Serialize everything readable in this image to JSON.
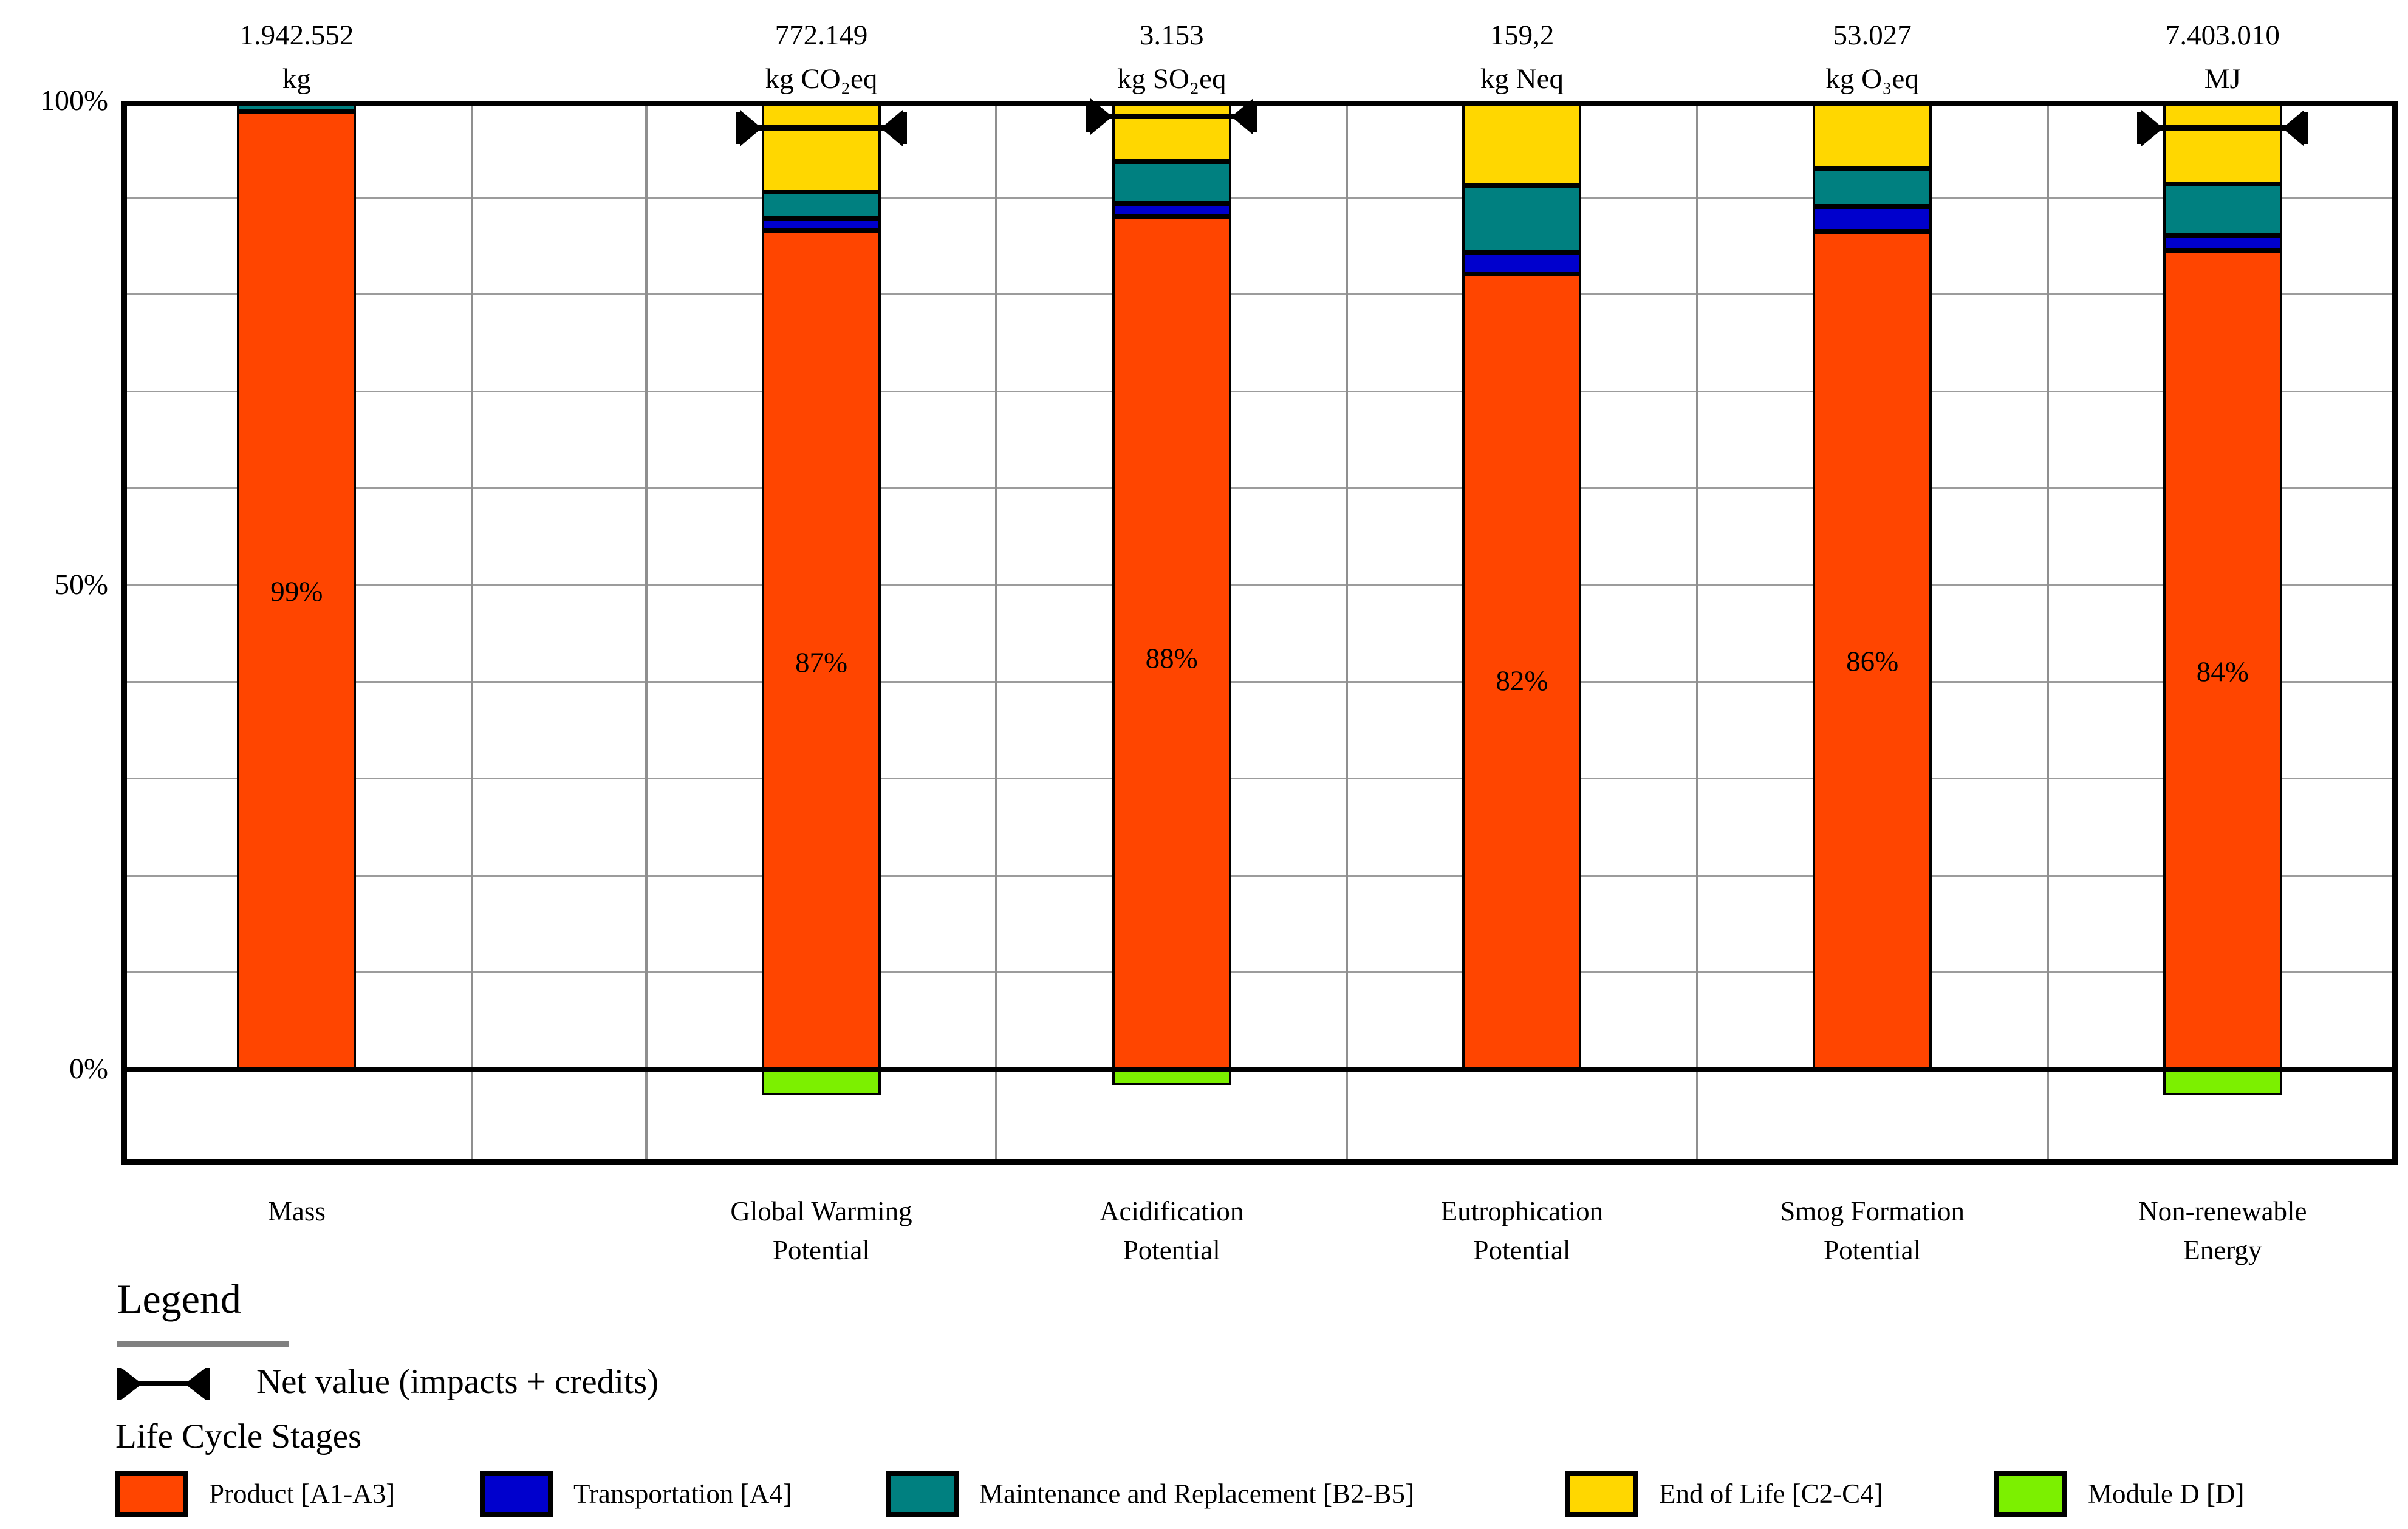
{
  "chart_data": {
    "type": "bar",
    "stacked": true,
    "title": "",
    "ylabel": "",
    "ylim": [
      -10,
      100
    ],
    "gridline_step": 10,
    "grid": true,
    "legend_position": "bottom",
    "y_ticks": [
      {
        "value": 100,
        "label": "100%"
      },
      {
        "value": 50,
        "label": "50%"
      },
      {
        "value": 0,
        "label": "0%"
      }
    ],
    "stage_order": [
      "product",
      "transportation",
      "maintenance",
      "end_of_life"
    ],
    "colors": {
      "product": "#FF4500",
      "transportation": "#0000CD",
      "maintenance": "#008080",
      "end_of_life": "#FFD700",
      "module_d": "#7CF000",
      "gridline": "#9C9C9C",
      "separator": "#8F8F8F",
      "axis": "#000000"
    },
    "categories": [
      {
        "key": "mass",
        "label_lines": [
          "Mass"
        ],
        "amount": "1.942.552",
        "unit": "kg",
        "segments": {
          "product": 98.9,
          "transportation": 0,
          "maintenance": 1.1,
          "end_of_life": 0
        },
        "module_d": 0,
        "net_value": null,
        "bar_label": "99%",
        "bar_label_y": 49.3
      },
      {
        "key": "global_warming",
        "label_lines": [
          "Global Warming",
          "Potential"
        ],
        "amount": "772.149",
        "unit": "kg CO₂eq",
        "segments": {
          "product": 86.6,
          "transportation": 1.2,
          "maintenance": 2.8,
          "end_of_life": 9.4
        },
        "module_d": -2.7,
        "net_value": 97.2,
        "bar_label": "87%",
        "bar_label_y": 42.0
      },
      {
        "key": "acidification",
        "label_lines": [
          "Acidification",
          "Potential"
        ],
        "amount": "3.153",
        "unit": "kg SO₂eq",
        "segments": {
          "product": 88.0,
          "transportation": 1.4,
          "maintenance": 4.3,
          "end_of_life": 6.3
        },
        "module_d": -1.6,
        "net_value": 98.4,
        "bar_label": "88%",
        "bar_label_y": 42.4
      },
      {
        "key": "eutrophication",
        "label_lines": [
          "Eutrophication",
          "Potential"
        ],
        "amount": "159,2",
        "unit": "kg Neq",
        "segments": {
          "product": 82.1,
          "transportation": 2.2,
          "maintenance": 7.0,
          "end_of_life": 8.7
        },
        "module_d": 0,
        "net_value": null,
        "bar_label": "82%",
        "bar_label_y": 40.1
      },
      {
        "key": "smog_formation",
        "label_lines": [
          "Smog Formation",
          "Potential"
        ],
        "amount": "53.027",
        "unit": "kg O₃eq",
        "segments": {
          "product": 86.5,
          "transportation": 2.6,
          "maintenance": 3.9,
          "end_of_life": 7.0
        },
        "module_d": 0,
        "net_value": null,
        "bar_label": "86%",
        "bar_label_y": 42.1
      },
      {
        "key": "non_renewable_energy",
        "label_lines": [
          "Non-renewable",
          "Energy"
        ],
        "amount": "7.403.010",
        "unit": "MJ",
        "segments": {
          "product": 84.5,
          "transportation": 1.6,
          "maintenance": 5.3,
          "end_of_life": 8.6
        },
        "module_d": -2.7,
        "net_value": 97.2,
        "bar_label": "84%",
        "bar_label_y": 41.0
      }
    ]
  },
  "legend": {
    "title": "Legend",
    "net_value_label": "Net value (impacts + credits)",
    "stages_title": "Life Cycle Stages",
    "items": [
      {
        "key": "product",
        "label": "Product [A1-A3]"
      },
      {
        "key": "transportation",
        "label": "Transportation [A4]"
      },
      {
        "key": "maintenance",
        "label": "Maintenance and Replacement [B2-B5]"
      },
      {
        "key": "end_of_life",
        "label": "End of Life [C2-C4]"
      },
      {
        "key": "module_d",
        "label": "Module D [D]"
      }
    ]
  }
}
